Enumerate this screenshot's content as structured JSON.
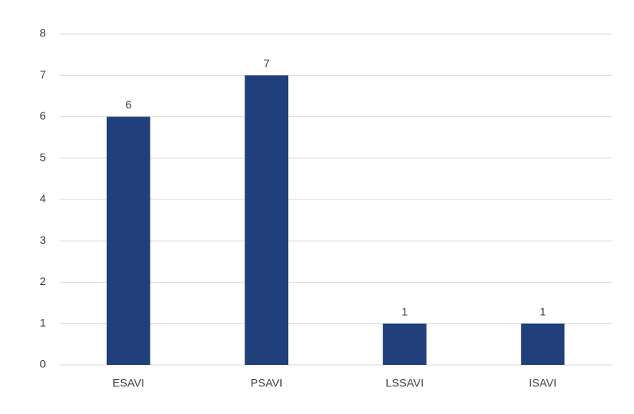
{
  "chart_data": {
    "type": "bar",
    "categories": [
      "ESAVI",
      "PSAVI",
      "LSSAVI",
      "ISAVI"
    ],
    "values": [
      6,
      7,
      1,
      1
    ],
    "color": "#203f7b",
    "ylim": [
      0,
      8
    ],
    "yticks": [
      0,
      1,
      2,
      3,
      4,
      5,
      6,
      7,
      8
    ],
    "grid": true,
    "data_labels": true
  }
}
